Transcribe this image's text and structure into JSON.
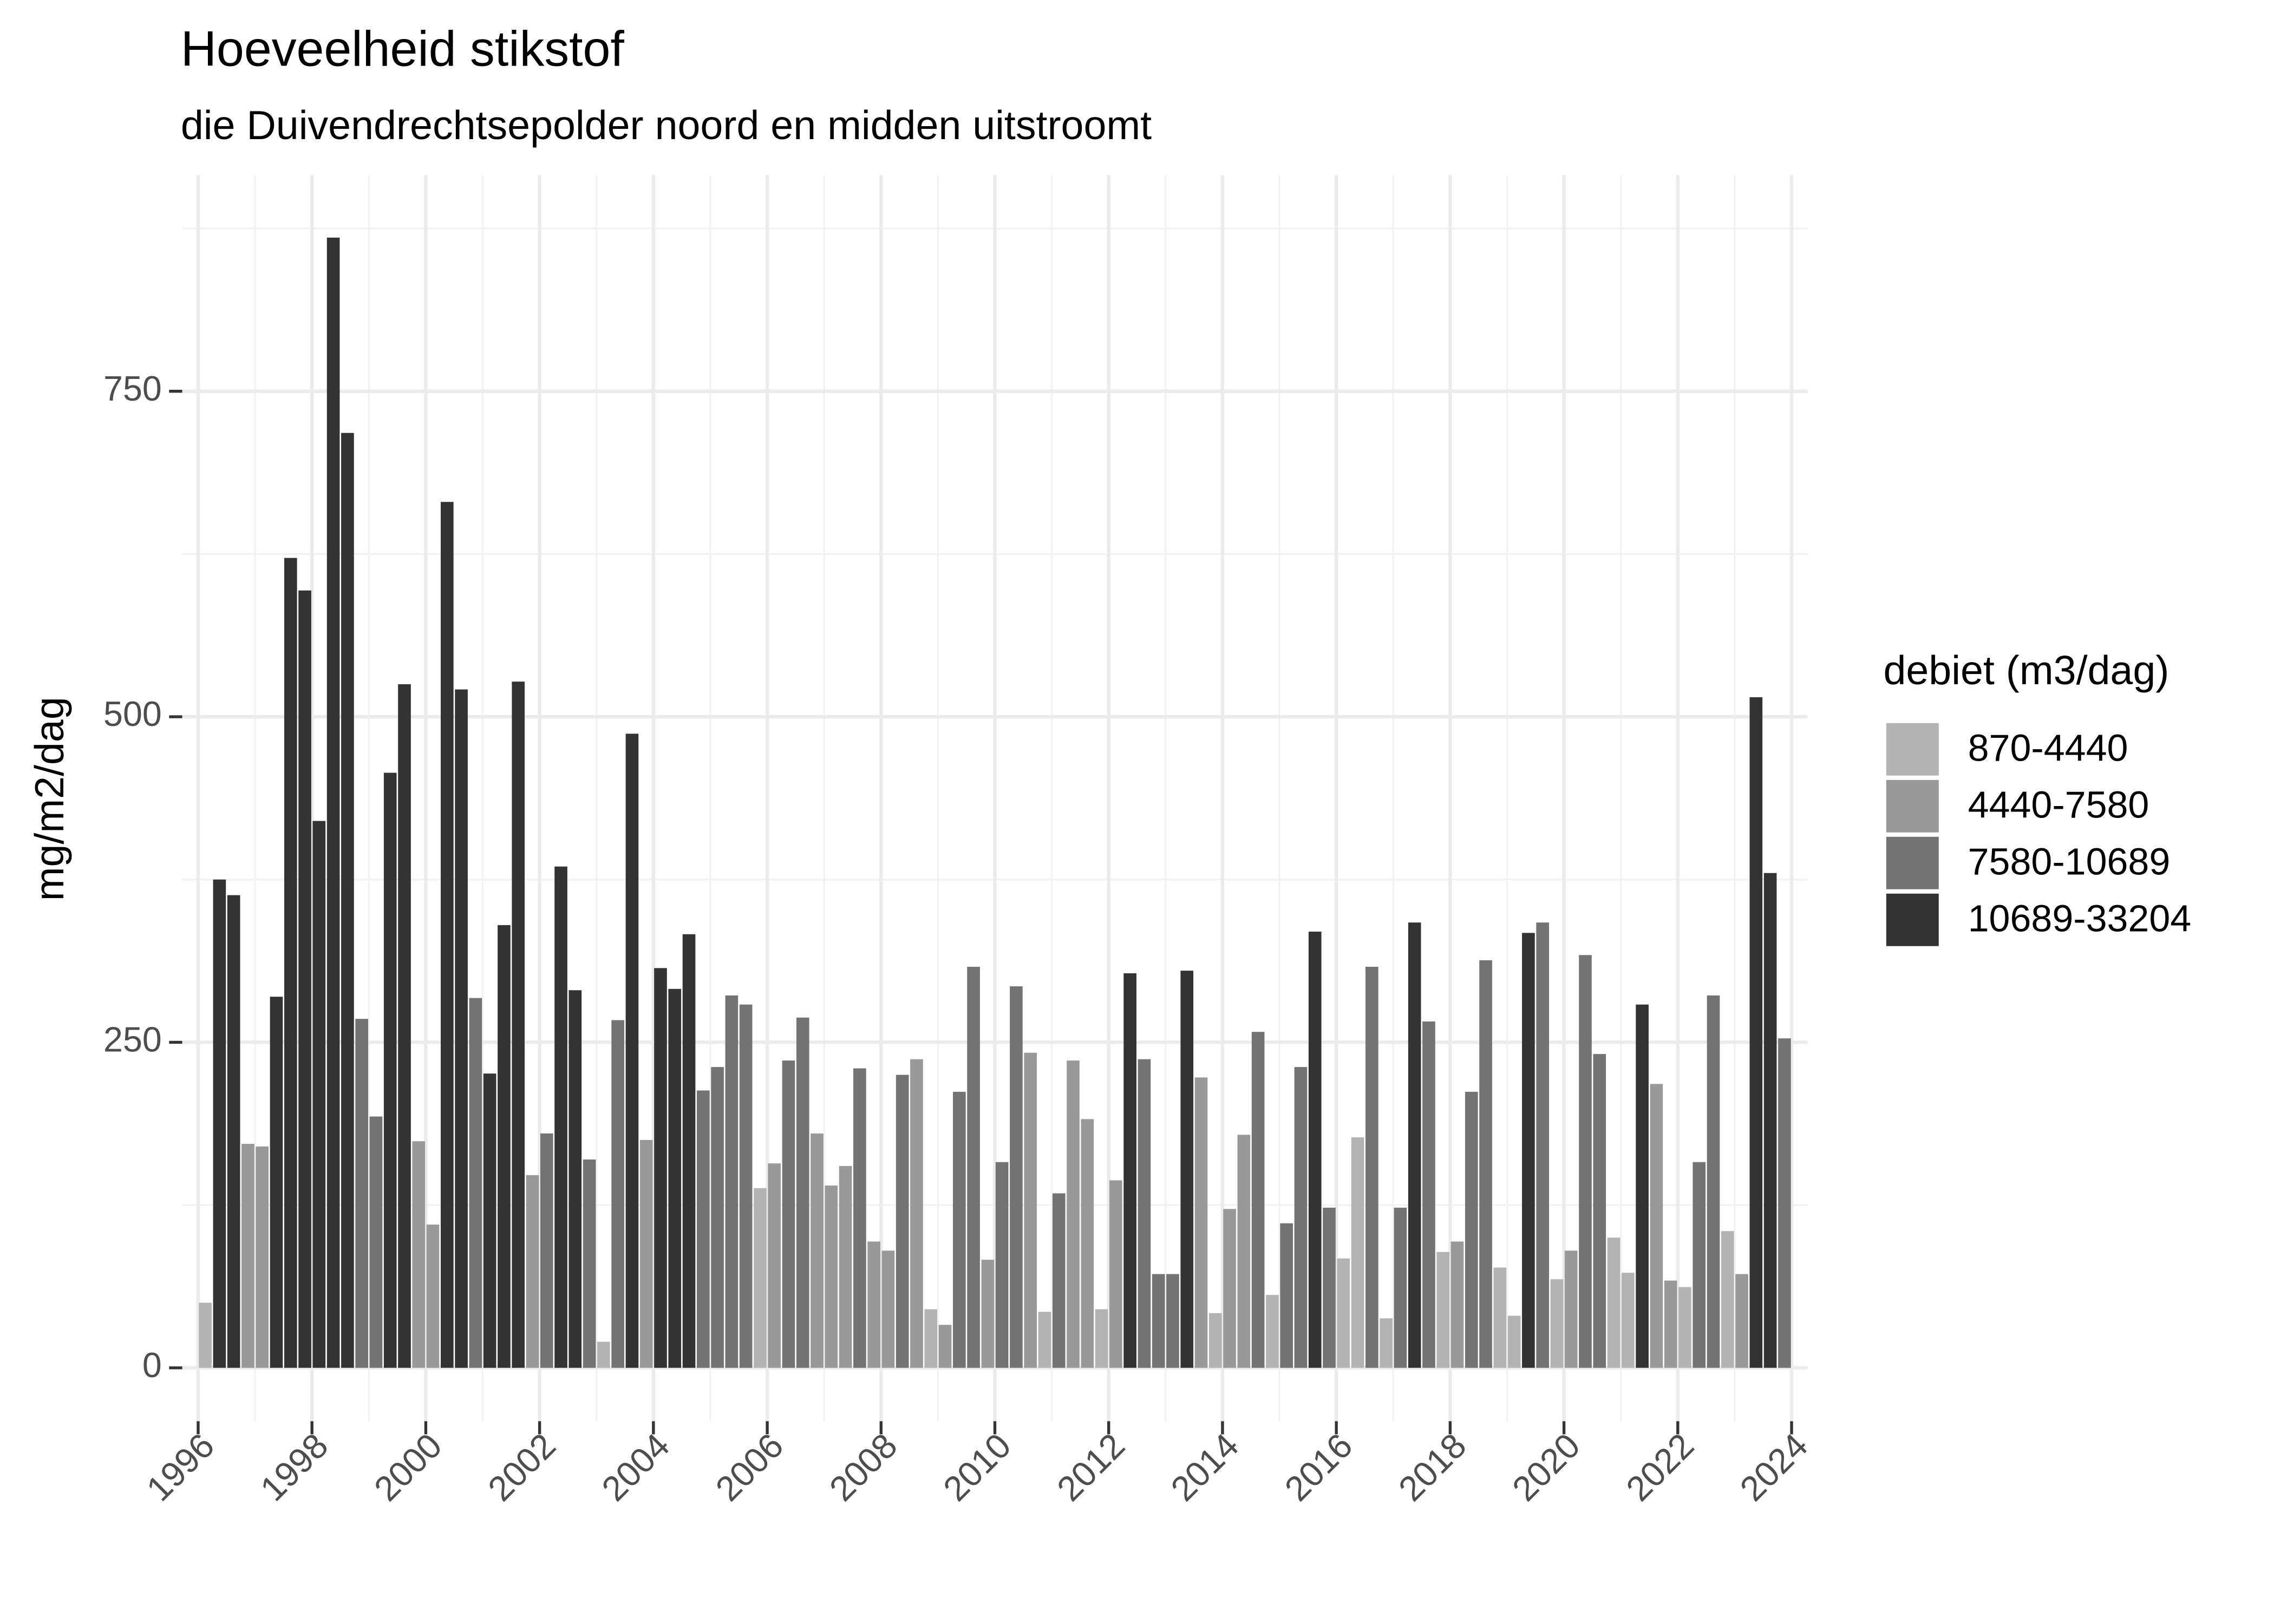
{
  "chart_data": {
    "type": "bar",
    "title": "Hoeveelheid stikstof",
    "subtitle": "die Duivendrechtsepolder noord en midden uitstroomt",
    "y_label": "mg/m2/dag",
    "legend_title": "debiet (m3/dag)",
    "legend": "right",
    "grid": true,
    "xlim": [
      1995.72,
      2024.28
    ],
    "xticks": [
      1996,
      1998,
      2000,
      2002,
      2004,
      2006,
      2008,
      2010,
      2012,
      2014,
      2016,
      2018,
      2020,
      2022,
      2024
    ],
    "x_minor_grid": [
      1997,
      1999,
      2001,
      2003,
      2005,
      2007,
      2009,
      2011,
      2013,
      2015,
      2017,
      2019,
      2021,
      2023
    ],
    "ylim": [
      -41,
      916
    ],
    "yticks": [
      0,
      250,
      500,
      750
    ],
    "y_minor_grid": [
      125,
      375,
      625,
      875
    ],
    "bar_width": 0.225,
    "series": [
      {
        "name": "870-4440",
        "color": "#b3b3b3",
        "x": [
          1996.125,
          2003.125,
          2005.875,
          2008.875,
          2010.875,
          2011.875,
          2013.875,
          2014.875,
          2016.125,
          2016.375,
          2016.875,
          2017.875,
          2018.875,
          2019.125,
          2019.875,
          2020.875,
          2021.125,
          2022.125,
          2022.875
        ],
        "values": [
          50,
          20,
          138,
          45,
          43,
          45,
          42,
          56,
          84,
          177,
          38,
          89,
          77,
          40,
          68,
          100,
          73,
          62,
          105
        ]
      },
      {
        "name": "4440-7580",
        "color": "#999999",
        "x": [
          1996.875,
          1997.125,
          1999.875,
          2000.125,
          2001.875,
          2003.875,
          2006.125,
          2006.875,
          2007.125,
          2007.375,
          2007.875,
          2008.125,
          2008.625,
          2009.125,
          2009.875,
          2010.625,
          2011.375,
          2011.625,
          2012.125,
          2013.625,
          2014.125,
          2014.375,
          2018.125,
          2020.125,
          2021.625,
          2021.875,
          2023.125
        ],
        "values": [
          172,
          170,
          174,
          110,
          148,
          175,
          157,
          180,
          140,
          155,
          97,
          90,
          237,
          33,
          83,
          242,
          236,
          191,
          144,
          223,
          122,
          179,
          97,
          90,
          218,
          67,
          72
        ]
      },
      {
        "name": "7580-10689",
        "color": "#737373",
        "x": [
          1998.875,
          1999.125,
          2000.875,
          2002.125,
          2002.875,
          2003.375,
          2004.875,
          2005.125,
          2005.375,
          2005.625,
          2006.375,
          2006.625,
          2007.625,
          2008.375,
          2009.375,
          2009.625,
          2010.125,
          2010.375,
          2011.125,
          2012.625,
          2012.875,
          2013.125,
          2014.625,
          2015.125,
          2015.375,
          2015.875,
          2016.625,
          2017.125,
          2017.625,
          2018.375,
          2018.625,
          2019.625,
          2020.375,
          2020.625,
          2022.375,
          2022.625,
          2023.875
        ],
        "values": [
          268,
          193,
          284,
          180,
          160,
          267,
          213,
          231,
          286,
          279,
          236,
          269,
          230,
          225,
          212,
          308,
          158,
          293,
          134,
          237,
          72,
          72,
          258,
          111,
          231,
          123,
          308,
          123,
          266,
          212,
          313,
          342,
          317,
          241,
          158,
          286,
          253
        ]
      },
      {
        "name": "10689-33204",
        "color": "#333333",
        "x": [
          1996.375,
          1996.625,
          1997.375,
          1997.625,
          1997.875,
          1998.125,
          1998.375,
          1998.625,
          1999.375,
          1999.625,
          2000.375,
          2000.625,
          2001.125,
          2001.375,
          2001.625,
          2002.375,
          2002.625,
          2003.625,
          2004.125,
          2004.375,
          2004.625,
          2012.375,
          2013.375,
          2015.625,
          2017.375,
          2019.375,
          2021.375,
          2023.375,
          2023.625
        ],
        "values": [
          375,
          363,
          285,
          622,
          597,
          420,
          868,
          718,
          457,
          525,
          665,
          521,
          226,
          340,
          527,
          385,
          290,
          487,
          307,
          291,
          333,
          303,
          305,
          335,
          342,
          334,
          279,
          515,
          380
        ]
      }
    ]
  }
}
